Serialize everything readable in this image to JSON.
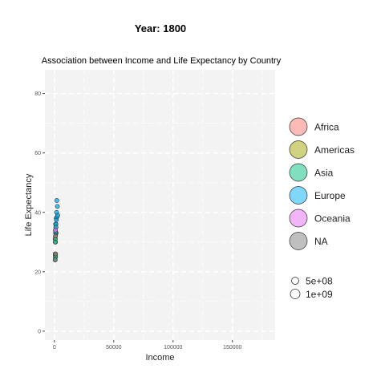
{
  "header": {
    "year_label": "Year: 1800"
  },
  "chart_data": {
    "type": "scatter",
    "title": "Association between Income and Life Expectancy by Country",
    "xlabel": "Income",
    "ylabel": "Life Expectancy",
    "xlim": [
      -8000,
      186000
    ],
    "ylim": [
      -3,
      88
    ],
    "x_ticks": [
      0,
      50000,
      100000,
      150000
    ],
    "x_tick_labels": [
      "0",
      "50000",
      "100000",
      "150000"
    ],
    "y_ticks": [
      0,
      20,
      40,
      60,
      80
    ],
    "y_tick_labels": [
      "0",
      "20",
      "40",
      "60",
      "80"
    ],
    "grid": true,
    "legend_position": "right",
    "colors": {
      "Africa": "#F8766D",
      "Americas": "#A3A500",
      "Asia": "#00BF7D",
      "Europe": "#00B0F6",
      "Oceania": "#E76BF3",
      "NA": "#7F7F7F",
      "panel_bg": "#F3F3F3",
      "grid": "#FFFFFF"
    },
    "legend": {
      "color_entries": [
        "Africa",
        "Americas",
        "Asia",
        "Europe",
        "Oceania",
        "NA"
      ],
      "size_entries": [
        {
          "label": "5e+08",
          "value": 500000000
        },
        {
          "label": "1e+09",
          "value": 1000000000
        }
      ]
    },
    "series": [
      {
        "name": "Africa",
        "points": [
          {
            "x": 700,
            "y": 26
          },
          {
            "x": 900,
            "y": 30
          },
          {
            "x": 1100,
            "y": 33
          },
          {
            "x": 800,
            "y": 25
          },
          {
            "x": 1000,
            "y": 36
          },
          {
            "x": 600,
            "y": 31
          }
        ]
      },
      {
        "name": "Americas",
        "points": [
          {
            "x": 900,
            "y": 32
          },
          {
            "x": 1200,
            "y": 35
          },
          {
            "x": 800,
            "y": 25.5
          },
          {
            "x": 1500,
            "y": 33
          }
        ]
      },
      {
        "name": "Asia",
        "points": [
          {
            "x": 800,
            "y": 31
          },
          {
            "x": 1000,
            "y": 25
          },
          {
            "x": 700,
            "y": 30
          },
          {
            "x": 1300,
            "y": 36
          },
          {
            "x": 600,
            "y": 24
          },
          {
            "x": 1000,
            "y": 33
          }
        ]
      },
      {
        "name": "Europe",
        "points": [
          {
            "x": 1500,
            "y": 38
          },
          {
            "x": 2000,
            "y": 44
          },
          {
            "x": 1800,
            "y": 40
          },
          {
            "x": 1200,
            "y": 36
          },
          {
            "x": 2500,
            "y": 42
          },
          {
            "x": 1700,
            "y": 37.5
          },
          {
            "x": 1300,
            "y": 35
          },
          {
            "x": 2200,
            "y": 38.5
          },
          {
            "x": 1000,
            "y": 33.5
          },
          {
            "x": 2800,
            "y": 39
          }
        ]
      },
      {
        "name": "Oceania",
        "points": [
          {
            "x": 800,
            "y": 34
          }
        ]
      },
      {
        "name": "NA",
        "points": [
          {
            "x": 900,
            "y": 32
          },
          {
            "x": 700,
            "y": 24
          },
          {
            "x": 1000,
            "y": 26
          }
        ]
      }
    ]
  }
}
